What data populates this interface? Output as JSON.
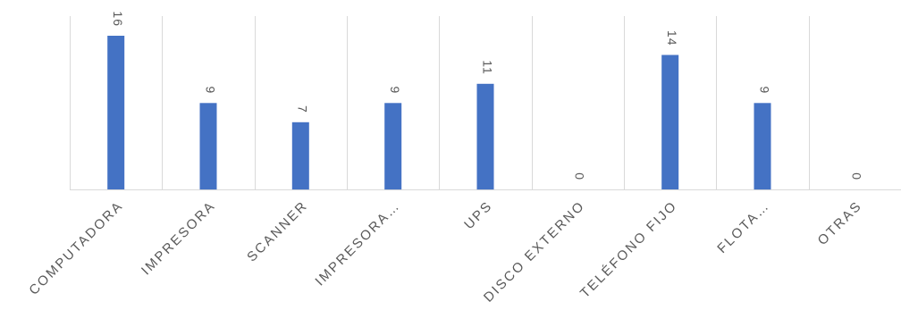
{
  "chart_data": {
    "type": "bar",
    "categories": [
      "COMPUTADORA",
      "IMPRESORA",
      "SCANNER",
      "IMPRESORA…",
      "UPS",
      "DISCO EXTERNO",
      "TELÉFONO FIJO",
      "FLOTA…",
      "OTRAS"
    ],
    "values": [
      16,
      9,
      7,
      9,
      11,
      0,
      14,
      9,
      0
    ],
    "title": "",
    "xlabel": "",
    "ylabel": "",
    "ylim": [
      0,
      16
    ],
    "grid": "vertical category separators",
    "legend": "none",
    "data_labels": "rotated, above bars",
    "bar_color": "#4472c4"
  }
}
